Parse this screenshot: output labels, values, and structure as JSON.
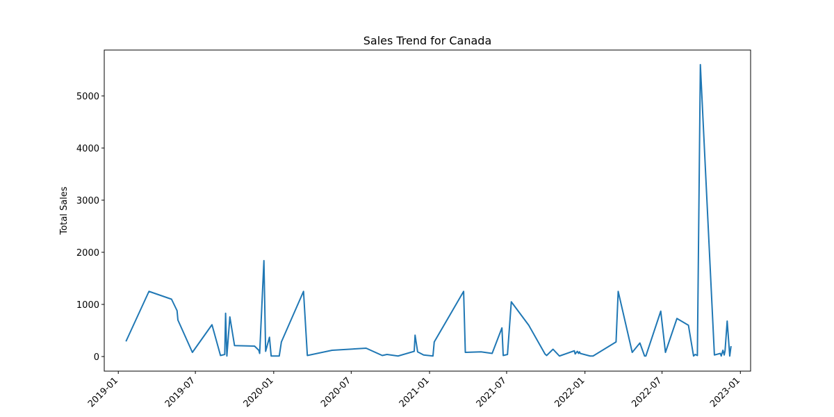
{
  "chart_data": {
    "type": "line",
    "title": "Sales Trend for Canada",
    "xlabel": "",
    "ylabel": "Total Sales",
    "grid": false,
    "legend": "none",
    "color": "#1f77b4",
    "xlim": [
      "2018-11-29",
      "2023-01-25"
    ],
    "ylim": [
      -280,
      5880
    ],
    "x_ticks": [
      "2019-01",
      "2019-07",
      "2020-01",
      "2020-07",
      "2021-01",
      "2021-07",
      "2022-01",
      "2022-07",
      "2023-01"
    ],
    "y_ticks": [
      0,
      1000,
      2000,
      3000,
      4000,
      5000
    ],
    "series": [
      {
        "x": [
          "2019-01-19",
          "2019-03-14",
          "2019-05-06",
          "2019-05-19",
          "2019-05-21",
          "2019-06-24",
          "2019-08-09",
          "2019-08-29",
          "2019-09-08",
          "2019-09-10",
          "2019-09-13",
          "2019-09-20",
          "2019-10-01",
          "2019-11-17",
          "2019-11-27",
          "2019-11-29",
          "2019-12-09",
          "2019-12-13",
          "2019-12-22",
          "2019-12-26",
          "2020-01-14",
          "2020-01-19",
          "2020-03-11",
          "2020-03-20",
          "2020-05-17",
          "2020-08-05",
          "2020-09-12",
          "2020-09-23",
          "2020-10-19",
          "2020-11-26",
          "2020-11-28",
          "2020-12-04",
          "2020-12-18",
          "2021-01-09",
          "2021-01-12",
          "2021-03-22",
          "2021-03-26",
          "2021-05-02",
          "2021-05-28",
          "2021-06-20",
          "2021-06-23",
          "2021-07-03",
          "2021-07-12",
          "2021-08-22",
          "2021-09-27",
          "2021-09-29",
          "2021-10-03",
          "2021-10-18",
          "2021-11-02",
          "2021-12-07",
          "2021-12-09",
          "2021-12-14",
          "2021-12-17",
          "2021-12-19",
          "2021-12-21",
          "2022-01-13",
          "2022-01-20",
          "2022-03-15",
          "2022-03-20",
          "2022-04-22",
          "2022-05-10",
          "2022-05-21",
          "2022-05-24",
          "2022-06-28",
          "2022-07-09",
          "2022-08-05",
          "2022-09-01",
          "2022-09-13",
          "2022-09-17",
          "2022-09-22",
          "2022-09-29",
          "2022-11-01",
          "2022-11-15",
          "2022-11-17",
          "2022-11-21",
          "2022-11-24",
          "2022-11-26",
          "2022-12-01",
          "2022-12-07",
          "2022-12-10"
        ],
        "y": [
          290,
          1250,
          1100,
          880,
          700,
          80,
          610,
          20,
          40,
          830,
          10,
          760,
          210,
          200,
          120,
          60,
          1840,
          100,
          370,
          10,
          10,
          280,
          1250,
          20,
          120,
          160,
          20,
          40,
          10,
          100,
          410,
          90,
          30,
          10,
          280,
          1250,
          80,
          90,
          60,
          550,
          20,
          40,
          1050,
          600,
          80,
          50,
          20,
          140,
          10,
          110,
          50,
          100,
          60,
          90,
          60,
          10,
          10,
          280,
          1250,
          80,
          260,
          10,
          10,
          870,
          80,
          730,
          600,
          10,
          40,
          20,
          5600,
          30,
          60,
          10,
          120,
          30,
          110,
          680,
          10,
          200
        ]
      }
    ]
  }
}
